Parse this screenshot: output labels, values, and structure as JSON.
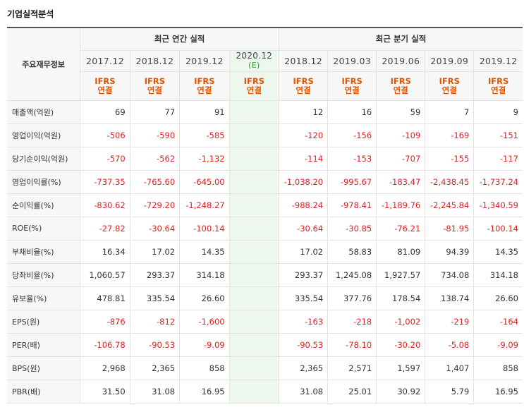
{
  "title": "기업실적분석",
  "corner_label": "주요재무정보",
  "annual_header": "최근 연간 실적",
  "quarterly_header": "최근 분기 실적",
  "annual_periods": [
    {
      "date": "2017.12",
      "est": "",
      "ifrs1": "IFRS",
      "ifrs2": "연결"
    },
    {
      "date": "2018.12",
      "est": "",
      "ifrs1": "IFRS",
      "ifrs2": "연결"
    },
    {
      "date": "2019.12",
      "est": "",
      "ifrs1": "IFRS",
      "ifrs2": "연결"
    },
    {
      "date": "2020.12",
      "est": "(E)",
      "ifrs1": "IFRS",
      "ifrs2": "연결"
    }
  ],
  "quarterly_periods": [
    {
      "date": "2018.12",
      "ifrs1": "IFRS",
      "ifrs2": "연결"
    },
    {
      "date": "2019.03",
      "ifrs1": "IFRS",
      "ifrs2": "연결"
    },
    {
      "date": "2019.06",
      "ifrs1": "IFRS",
      "ifrs2": "연결"
    },
    {
      "date": "2019.09",
      "ifrs1": "IFRS",
      "ifrs2": "연결"
    },
    {
      "date": "2019.12",
      "ifrs1": "IFRS",
      "ifrs2": "연결"
    }
  ],
  "rows": [
    {
      "label": "매출액(억원)",
      "annual": [
        "69",
        "77",
        "91",
        ""
      ],
      "quarterly": [
        "12",
        "16",
        "59",
        "7",
        "9"
      ]
    },
    {
      "label": "영업이익(억원)",
      "annual": [
        "-506",
        "-590",
        "-585",
        ""
      ],
      "quarterly": [
        "-120",
        "-156",
        "-109",
        "-169",
        "-151"
      ]
    },
    {
      "label": "당기순이익(억원)",
      "annual": [
        "-570",
        "-562",
        "-1,132",
        ""
      ],
      "quarterly": [
        "-114",
        "-153",
        "-707",
        "-155",
        "-117"
      ]
    },
    {
      "label": "영업이익률(%)",
      "annual": [
        "-737.35",
        "-765.60",
        "-645.00",
        ""
      ],
      "quarterly": [
        "-1,038.20",
        "-995.67",
        "-183.47",
        "-2,438.45",
        "-1,737.24"
      ]
    },
    {
      "label": "순이익률(%)",
      "annual": [
        "-830.62",
        "-729.20",
        "-1,248.27",
        ""
      ],
      "quarterly": [
        "-988.24",
        "-978.41",
        "-1,189.76",
        "-2,245.84",
        "-1,340.59"
      ]
    },
    {
      "label": "ROE(%)",
      "annual": [
        "-27.82",
        "-30.64",
        "-100.14",
        ""
      ],
      "quarterly": [
        "-30.64",
        "-30.85",
        "-76.21",
        "-81.95",
        "-100.14"
      ]
    },
    {
      "label": "부채비율(%)",
      "annual": [
        "16.34",
        "17.02",
        "14.35",
        ""
      ],
      "quarterly": [
        "17.02",
        "58.83",
        "81.09",
        "94.39",
        "14.35"
      ]
    },
    {
      "label": "당좌비율(%)",
      "annual": [
        "1,060.57",
        "293.37",
        "314.18",
        ""
      ],
      "quarterly": [
        "293.37",
        "1,245.08",
        "1,927.57",
        "734.08",
        "314.18"
      ]
    },
    {
      "label": "유보율(%)",
      "annual": [
        "478.81",
        "335.54",
        "26.60",
        ""
      ],
      "quarterly": [
        "335.54",
        "377.76",
        "178.54",
        "138.74",
        "26.60"
      ]
    },
    {
      "label": "EPS(원)",
      "annual": [
        "-876",
        "-812",
        "-1,600",
        ""
      ],
      "quarterly": [
        "-163",
        "-218",
        "-1,002",
        "-219",
        "-164"
      ]
    },
    {
      "label": "PER(배)",
      "annual": [
        "-106.78",
        "-90.53",
        "-9.09",
        ""
      ],
      "quarterly": [
        "-90.53",
        "-78.10",
        "-30.20",
        "-5.08",
        "-9.09"
      ]
    },
    {
      "label": "BPS(원)",
      "annual": [
        "2,968",
        "2,365",
        "858",
        ""
      ],
      "quarterly": [
        "2,365",
        "2,571",
        "1,597",
        "1,407",
        "858"
      ]
    },
    {
      "label": "PBR(배)",
      "annual": [
        "31.50",
        "31.08",
        "16.95",
        ""
      ],
      "quarterly": [
        "31.08",
        "25.01",
        "30.92",
        "5.79",
        "16.95"
      ]
    }
  ],
  "colors": {
    "negative": "#e02020",
    "ifrs": "#e05500",
    "estimate_bg": "#eef7ee",
    "estimate_text": "#2d9e2d"
  }
}
